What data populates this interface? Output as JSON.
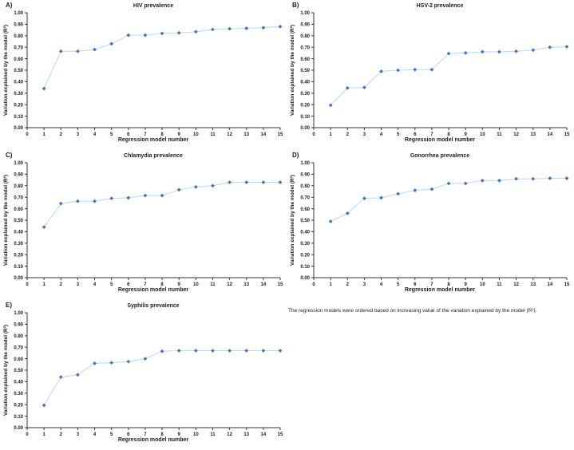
{
  "figure": {
    "caption": "The regression models were ordered based on increasing value of the variation explained by the model (R²)."
  },
  "chart_data": [
    {
      "panel_label": "A)",
      "type": "line",
      "title": "HIV prevalence",
      "xlabel": "Regression model number",
      "ylabel": "Variation explained by the model (R²)",
      "x": [
        1,
        2,
        3,
        4,
        5,
        6,
        7,
        8,
        9,
        10,
        11,
        12,
        13,
        14,
        15
      ],
      "values": [
        0.34,
        0.665,
        0.665,
        0.68,
        0.73,
        0.805,
        0.805,
        0.82,
        0.825,
        0.835,
        0.855,
        0.86,
        0.865,
        0.87,
        0.88
      ],
      "xlim": [
        0,
        15
      ],
      "ylim": [
        0,
        1
      ],
      "xtick_step": 1,
      "ytick_step": 0.1,
      "marker": "diamond",
      "marker_color": "#4472C4",
      "line_color": "#BDD7EE",
      "axis_color": "#333333",
      "grid": false,
      "legend": "none"
    },
    {
      "panel_label": "B)",
      "type": "line",
      "title": "HSV-2 prevalence",
      "xlabel": "Regression model number",
      "ylabel": "Variation explained by the model (R²)",
      "x": [
        1,
        2,
        3,
        4,
        5,
        6,
        7,
        8,
        9,
        10,
        11,
        12,
        13,
        14,
        15
      ],
      "values": [
        0.195,
        0.345,
        0.35,
        0.49,
        0.5,
        0.505,
        0.505,
        0.645,
        0.65,
        0.66,
        0.66,
        0.665,
        0.675,
        0.7,
        0.705
      ],
      "xlim": [
        0,
        15
      ],
      "ylim": [
        0,
        1
      ],
      "xtick_step": 1,
      "ytick_step": 0.1,
      "marker": "diamond",
      "marker_color": "#4472C4",
      "line_color": "#BDD7EE",
      "axis_color": "#333333",
      "grid": false,
      "legend": "none"
    },
    {
      "panel_label": "C)",
      "type": "line",
      "title": "Chlamydia prevalence",
      "xlabel": "Regression model number",
      "ylabel": "Variation explained by the model (R²)",
      "x": [
        1,
        2,
        3,
        4,
        5,
        6,
        7,
        8,
        9,
        10,
        11,
        12,
        13,
        14,
        15
      ],
      "values": [
        0.44,
        0.645,
        0.665,
        0.665,
        0.69,
        0.695,
        0.715,
        0.715,
        0.765,
        0.79,
        0.8,
        0.83,
        0.83,
        0.83,
        0.83
      ],
      "xlim": [
        0,
        15
      ],
      "ylim": [
        0,
        1
      ],
      "xtick_step": 1,
      "ytick_step": 0.1,
      "marker": "diamond",
      "marker_color": "#4472C4",
      "line_color": "#BDD7EE",
      "axis_color": "#333333",
      "grid": false,
      "legend": "none"
    },
    {
      "panel_label": "D)",
      "type": "line",
      "title": "Gonorrhea prevalence",
      "xlabel": "Regression model number",
      "ylabel": "Variation explained by the model (R²)",
      "x": [
        1,
        2,
        3,
        4,
        5,
        6,
        7,
        8,
        9,
        10,
        11,
        12,
        13,
        14,
        15
      ],
      "values": [
        0.49,
        0.56,
        0.69,
        0.695,
        0.73,
        0.76,
        0.77,
        0.82,
        0.82,
        0.845,
        0.845,
        0.86,
        0.86,
        0.865,
        0.865
      ],
      "xlim": [
        0,
        15
      ],
      "ylim": [
        0,
        1
      ],
      "xtick_step": 1,
      "ytick_step": 0.1,
      "marker": "diamond",
      "marker_color": "#4472C4",
      "line_color": "#BDD7EE",
      "axis_color": "#333333",
      "grid": false,
      "legend": "none"
    },
    {
      "panel_label": "E)",
      "type": "line",
      "title": "Syphilis prevalence",
      "xlabel": "Regression model number",
      "ylabel": "Variation explained by the model (R²)",
      "x": [
        1,
        2,
        3,
        4,
        5,
        6,
        7,
        8,
        9,
        10,
        11,
        12,
        13,
        14,
        15
      ],
      "values": [
        0.195,
        0.44,
        0.46,
        0.56,
        0.565,
        0.575,
        0.6,
        0.665,
        0.67,
        0.67,
        0.67,
        0.67,
        0.67,
        0.67,
        0.67
      ],
      "xlim": [
        0,
        15
      ],
      "ylim": [
        0,
        1
      ],
      "xtick_step": 1,
      "ytick_step": 0.1,
      "marker": "diamond",
      "marker_color": "#4472C4",
      "line_color": "#BDD7EE",
      "axis_color": "#333333",
      "grid": false,
      "legend": "none"
    }
  ]
}
